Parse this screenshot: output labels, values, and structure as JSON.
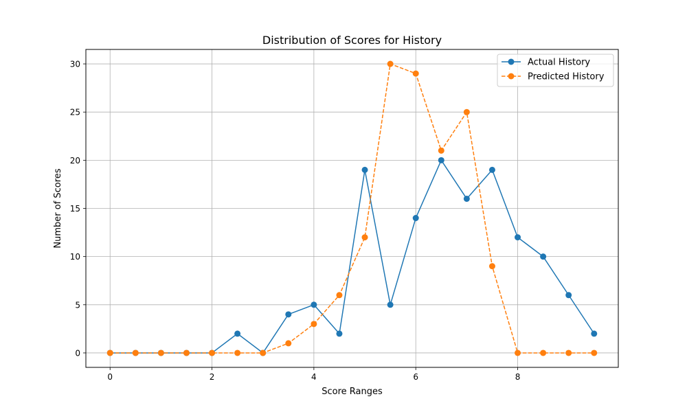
{
  "chart_data": {
    "type": "line",
    "title": "Distribution of Scores for History",
    "xlabel": "Score Ranges",
    "ylabel": "Number of Scores",
    "xlim": [
      -0.475,
      9.975
    ],
    "ylim": [
      -1.5,
      31.5
    ],
    "xticks": [
      0,
      2,
      4,
      6,
      8
    ],
    "yticks": [
      0,
      5,
      10,
      15,
      20,
      25,
      30
    ],
    "grid": true,
    "legend_position": "top-right",
    "x": [
      0,
      0.5,
      1,
      1.5,
      2,
      2.5,
      3,
      3.5,
      4,
      4.5,
      5,
      5.5,
      6,
      6.5,
      7,
      7.5,
      8,
      8.5,
      9,
      9.5
    ],
    "series": [
      {
        "name": "Actual History",
        "color": "#1f77b4",
        "line_style": "solid",
        "marker": "circle",
        "values": [
          0,
          0,
          0,
          0,
          0,
          2,
          0,
          4,
          5,
          2,
          19,
          5,
          14,
          20,
          16,
          19,
          12,
          10,
          6,
          2
        ]
      },
      {
        "name": "Predicted History",
        "color": "#ff7f0e",
        "line_style": "dashed",
        "marker": "circle",
        "values": [
          0,
          0,
          0,
          0,
          0,
          0,
          0,
          1,
          3,
          6,
          12,
          30,
          29,
          21,
          25,
          9,
          0,
          0,
          0,
          0
        ]
      }
    ]
  }
}
